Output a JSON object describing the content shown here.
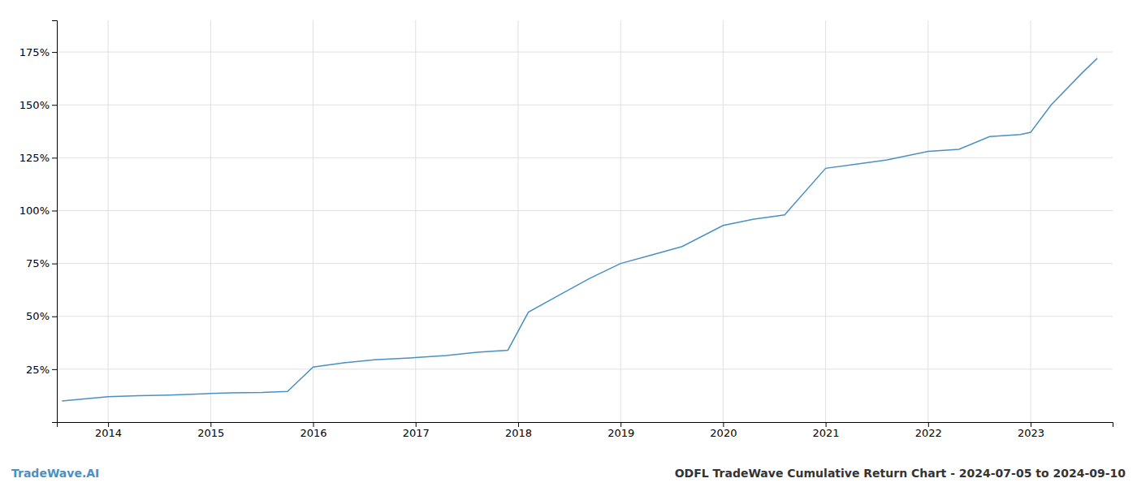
{
  "chart_data": {
    "type": "line",
    "title": "ODFL TradeWave Cumulative Return Chart - 2024-07-05 to 2024-09-10",
    "annotations": [
      "TradeWave.AI"
    ],
    "color": "#4a90c4",
    "x": [
      2013.55,
      2014.0,
      2014.3,
      2014.6,
      2015.0,
      2015.2,
      2015.5,
      2015.75,
      2016.0,
      2016.3,
      2016.6,
      2017.0,
      2017.3,
      2017.6,
      2017.9,
      2018.1,
      2018.4,
      2018.7,
      2019.0,
      2019.3,
      2019.6,
      2020.0,
      2020.3,
      2020.6,
      2021.0,
      2021.3,
      2021.6,
      2022.0,
      2022.3,
      2022.6,
      2022.9,
      2023.0,
      2023.2,
      2023.5,
      2023.65
    ],
    "values": [
      10.0,
      12.0,
      12.5,
      12.8,
      13.5,
      13.8,
      14.0,
      14.5,
      26.0,
      28.0,
      29.5,
      30.5,
      31.5,
      33.0,
      34.0,
      52.0,
      60.0,
      68.0,
      75.0,
      79.0,
      83.0,
      93.0,
      96.0,
      98.0,
      120.0,
      122.0,
      124.0,
      128.0,
      129.0,
      135.0,
      136.0,
      137.0,
      150.0,
      165.0,
      172.0
    ],
    "xlim": [
      2013.5,
      2023.8
    ],
    "ylim": [
      0,
      190
    ],
    "xticks": [
      2014,
      2015,
      2016,
      2017,
      2018,
      2019,
      2020,
      2021,
      2022,
      2023
    ],
    "yticks": [
      {
        "value": 25,
        "label": "25%"
      },
      {
        "value": 50,
        "label": "50%"
      },
      {
        "value": 75,
        "label": "75%"
      },
      {
        "value": 100,
        "label": "100%"
      },
      {
        "value": 125,
        "label": "125%"
      },
      {
        "value": 150,
        "label": "150%"
      },
      {
        "value": 175,
        "label": "175%"
      }
    ],
    "grid": true
  }
}
